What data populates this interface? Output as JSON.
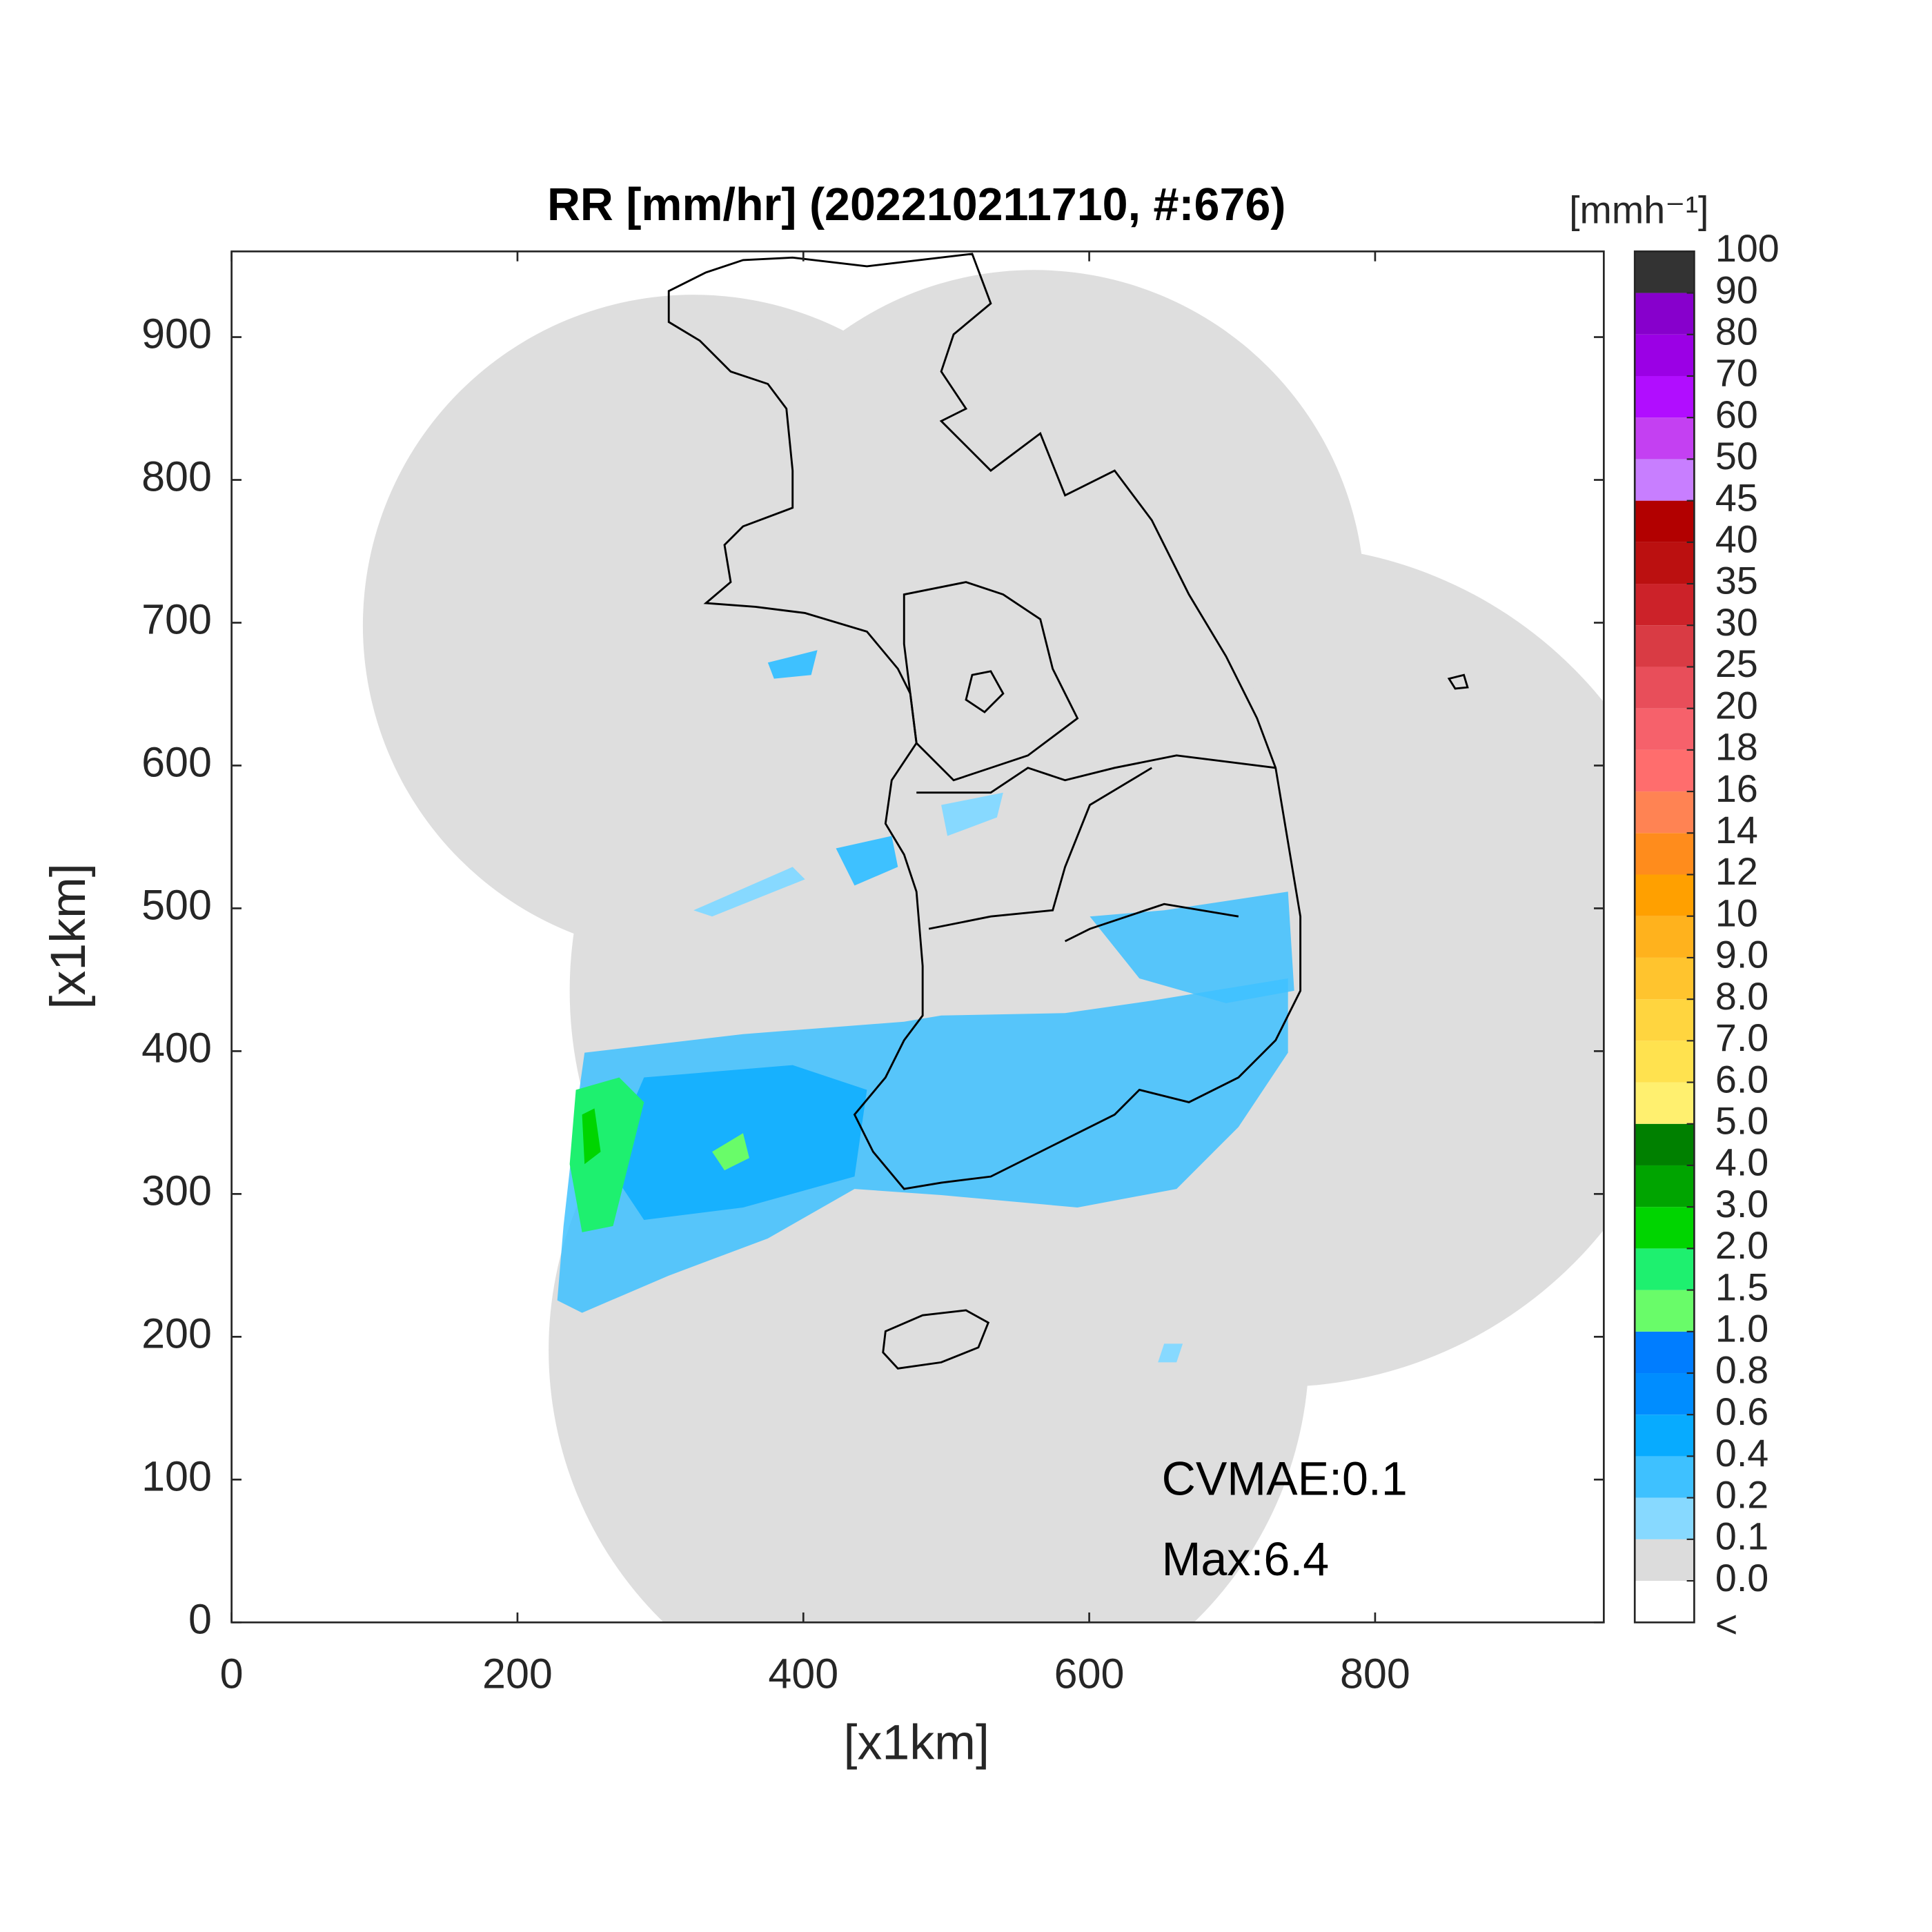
{
  "chart_data": {
    "type": "radar-map",
    "title": "RR [mm/hr] (202210211710, #:676)",
    "x_label": "[x1km]",
    "y_label": "[x1km]",
    "xlim": [
      0,
      960
    ],
    "ylim": [
      0,
      960
    ],
    "xticks": [
      0,
      200,
      400,
      600,
      800
    ],
    "yticks": [
      0,
      100,
      200,
      300,
      400,
      500,
      600,
      700,
      800,
      900
    ],
    "annotations": [
      "CVMAE:0.1",
      "Max:6.4"
    ],
    "colorbar": {
      "title": "[mmh⁻¹]",
      "under_label": "<",
      "ticks": [
        {
          "value": 0,
          "label": "0.0"
        },
        0.1,
        0.2,
        0.4,
        0.6,
        0.8,
        {
          "value": 1,
          "label": "1.0"
        },
        1.5,
        {
          "value": 2,
          "label": "2.0"
        },
        {
          "value": 3,
          "label": "3.0"
        },
        {
          "value": 4,
          "label": "4.0"
        },
        {
          "value": 5,
          "label": "5.0"
        },
        {
          "value": 6,
          "label": "6.0"
        },
        {
          "value": 7,
          "label": "7.0"
        },
        {
          "value": 8,
          "label": "8.0"
        },
        {
          "value": 9,
          "label": "9.0"
        },
        10,
        12,
        14,
        16,
        18,
        20,
        25,
        30,
        35,
        40,
        45,
        50,
        60,
        70,
        80,
        90,
        100
      ],
      "colors": [
        "#ffffff",
        "#dcdcdc",
        "#87d9ff",
        "#3ec1ff",
        "#07abff",
        "#008dff",
        "#007dff",
        "#69fc69",
        "#1ef06f",
        "#00d500",
        "#00a400",
        "#008000",
        "#fff06f",
        "#ffe24f",
        "#ffd53f",
        "#ffc42e",
        "#ffb21d",
        "#ffa000",
        "#ff8c1c",
        "#ff8353",
        "#ff6d6d",
        "#f6616b",
        "#e84e5a",
        "#d93b44",
        "#cc2229",
        "#bb1010",
        "#b20000",
        "#c87eff",
        "#c440f2",
        "#b10dff",
        "#9b00e5",
        "#8700cc",
        "#333333"
      ]
    }
  }
}
